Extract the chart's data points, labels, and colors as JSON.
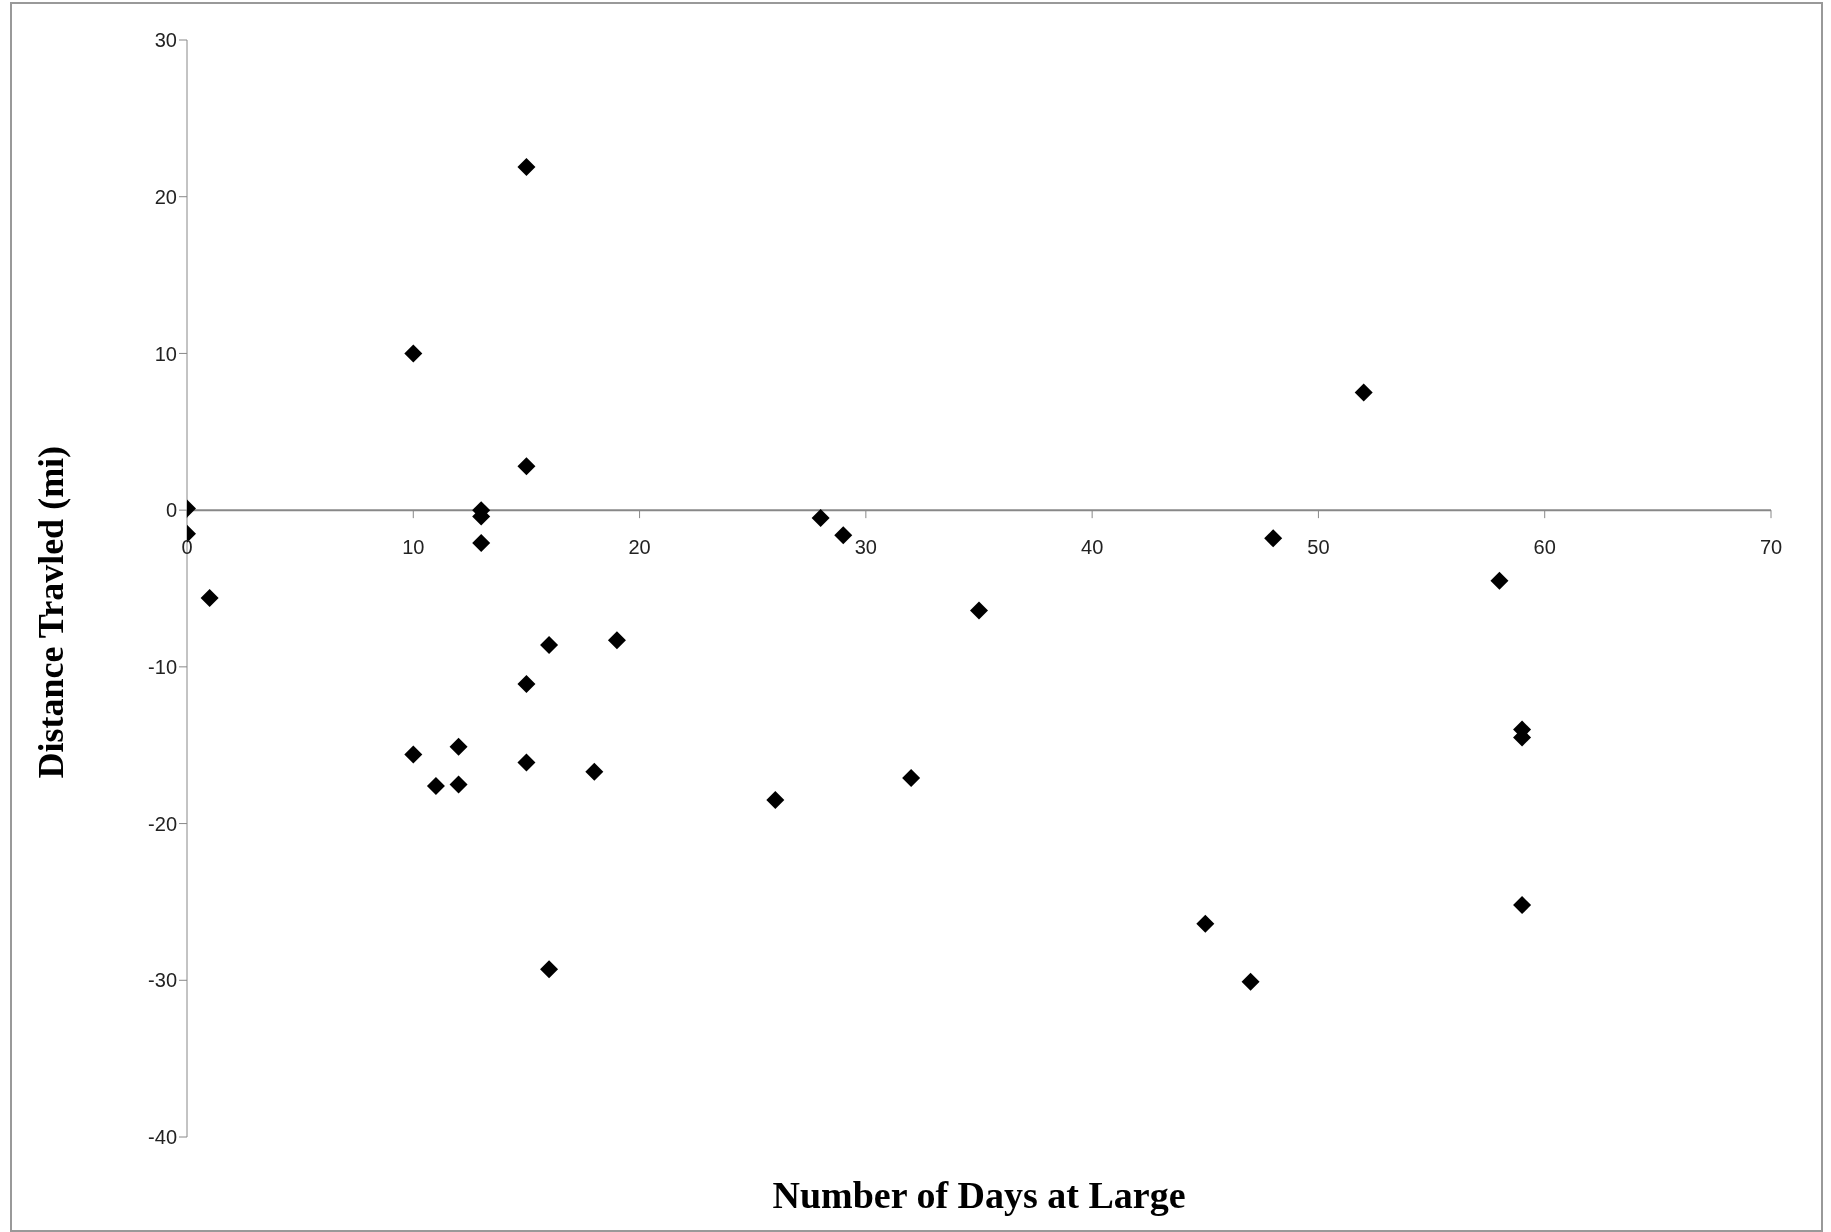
{
  "chart_data": {
    "type": "scatter",
    "xlabel": "Number of Days at Large",
    "ylabel": "Distance Travled (mi)",
    "x": [
      0,
      0,
      1,
      10,
      10,
      11,
      12,
      12,
      13,
      13,
      13,
      15,
      15,
      15,
      15,
      16,
      16,
      18,
      19,
      26,
      28,
      29,
      32,
      35,
      45,
      47,
      48,
      52,
      58,
      59,
      59,
      59
    ],
    "values": [
      0.1,
      -1.5,
      -5.6,
      10,
      -15.6,
      -17.6,
      -15.1,
      -17.5,
      0,
      -0.4,
      -2.1,
      21.9,
      2.8,
      -11.1,
      -16.1,
      -8.6,
      -29.3,
      -16.7,
      -8.3,
      -18.5,
      -0.5,
      -1.6,
      -17.1,
      -6.4,
      -26.4,
      -30.1,
      -1.8,
      7.5,
      -4.5,
      -14,
      -14.5,
      -25.2
    ],
    "color": "#000000",
    "marker": "diamond",
    "xlim": [
      0,
      70
    ],
    "xticks": [
      0,
      10,
      20,
      30,
      40,
      50,
      60,
      70
    ],
    "ylim": [
      -40,
      30
    ],
    "yticks": [
      -40,
      -30,
      -20,
      -10,
      0,
      10,
      20,
      30
    ],
    "grid": false,
    "legend": false
  }
}
